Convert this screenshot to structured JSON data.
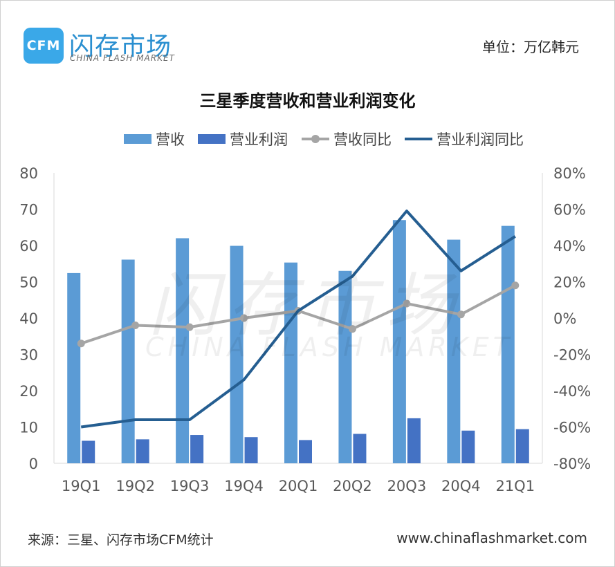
{
  "logo": {
    "badge_text": "CFM",
    "name_cn": "闪存市场",
    "name_en": "CHINA FLASH MARKET"
  },
  "unit_label": "单位：万亿韩元",
  "footer": {
    "source": "来源：三星、闪存市场CFM统计",
    "url": "www.chinaflashmarket.com"
  },
  "watermark": {
    "cn": "闪存市场",
    "en": "CHINA FLASH MARKET"
  },
  "colors": {
    "revenue_bar": "#5b9bd5",
    "profit_bar": "#4472c4",
    "revenue_yoy_line": "#a5a5a5",
    "profit_yoy_line": "#255e91",
    "axis_text": "#595959",
    "axis_line": "#d9d9d9",
    "logo_blue": "#3aa8e8"
  },
  "chart_data": {
    "type": "bar",
    "title": "三星季度营收和营业利润变化",
    "categories": [
      "19Q1",
      "19Q2",
      "19Q3",
      "19Q4",
      "20Q1",
      "20Q2",
      "20Q3",
      "20Q4",
      "21Q1"
    ],
    "series": [
      {
        "name": "营收",
        "type": "bar",
        "axis": "left",
        "values": [
          52.4,
          56.1,
          62.0,
          59.9,
          55.3,
          53.0,
          67.0,
          61.6,
          65.4
        ]
      },
      {
        "name": "营业利润",
        "type": "bar",
        "axis": "left",
        "values": [
          6.2,
          6.6,
          7.8,
          7.2,
          6.4,
          8.1,
          12.4,
          9.0,
          9.4
        ]
      },
      {
        "name": "营收同比",
        "type": "line",
        "axis": "right",
        "marker": "circle",
        "values": [
          -14,
          -4,
          -5,
          0,
          4,
          -6,
          8,
          2,
          18
        ]
      },
      {
        "name": "营业利润同比",
        "type": "line",
        "axis": "right",
        "marker": "none",
        "values": [
          -60,
          -56,
          -56,
          -34,
          4,
          23,
          59,
          26,
          45
        ]
      }
    ],
    "ylim": [
      0,
      80
    ],
    "y_ticks": [
      "0",
      "10",
      "20",
      "30",
      "40",
      "50",
      "60",
      "70",
      "80"
    ],
    "y2lim": [
      -80,
      80
    ],
    "y2_ticks": [
      "-80%",
      "-60%",
      "-40%",
      "-20%",
      "0%",
      "20%",
      "40%",
      "60%",
      "80%"
    ],
    "grid": false,
    "legend_position": "top"
  }
}
